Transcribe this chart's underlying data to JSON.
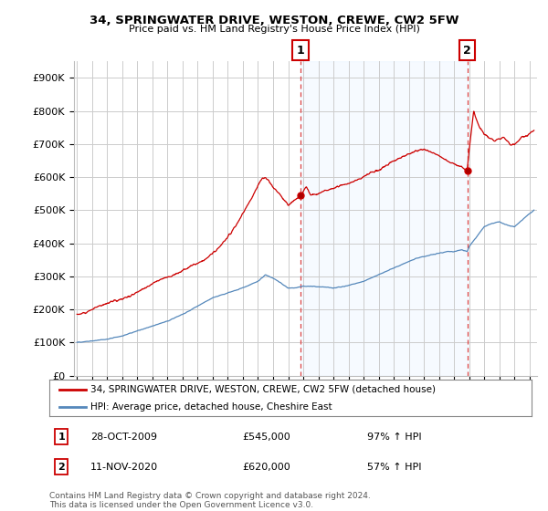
{
  "title": "34, SPRINGWATER DRIVE, WESTON, CREWE, CW2 5FW",
  "subtitle": "Price paid vs. HM Land Registry's House Price Index (HPI)",
  "ylabel_ticks": [
    "£0",
    "£100K",
    "£200K",
    "£300K",
    "£400K",
    "£500K",
    "£600K",
    "£700K",
    "£800K",
    "£900K"
  ],
  "ytick_values": [
    0,
    100000,
    200000,
    300000,
    400000,
    500000,
    600000,
    700000,
    800000,
    900000
  ],
  "ylim": [
    0,
    950000
  ],
  "xlim_start": 1994.8,
  "xlim_end": 2025.5,
  "sale1": {
    "year": 2009.83,
    "price": 545000,
    "label": "1",
    "date": "28-OCT-2009",
    "hpi_pct": "97% ↑ HPI"
  },
  "sale2": {
    "year": 2020.87,
    "price": 620000,
    "label": "2",
    "date": "11-NOV-2020",
    "hpi_pct": "57% ↑ HPI"
  },
  "legend_line1": "34, SPRINGWATER DRIVE, WESTON, CREWE, CW2 5FW (detached house)",
  "legend_line2": "HPI: Average price, detached house, Cheshire East",
  "footer": "Contains HM Land Registry data © Crown copyright and database right 2024.\nThis data is licensed under the Open Government Licence v3.0.",
  "red_color": "#cc0000",
  "blue_color": "#5588bb",
  "shade_color": "#ddeeff",
  "dashed_color": "#dd4444",
  "background_color": "#ffffff",
  "grid_color": "#cccccc"
}
